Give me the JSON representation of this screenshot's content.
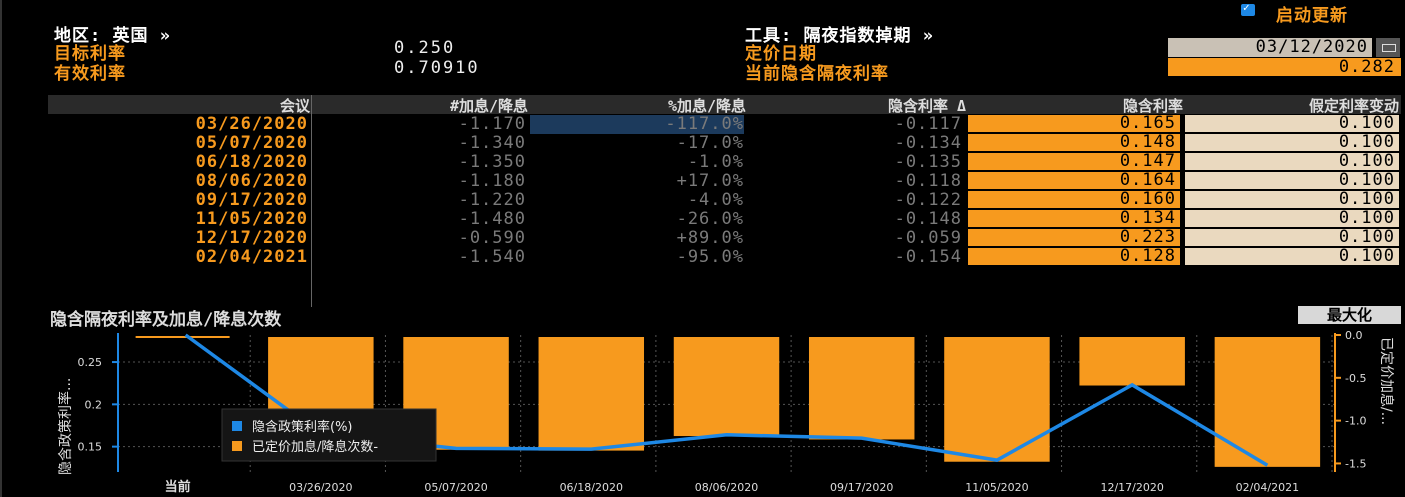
{
  "header": {
    "region_label": "地区: 英国 »",
    "target_rate_label": "目标利率",
    "target_rate_value": "0.250",
    "effective_rate_label": "有效利率",
    "effective_rate_value": "0.70910",
    "instrument_label": "工具: 隔夜指数掉期 »",
    "pricing_date_label": "定价日期",
    "pricing_date_value": "03/12/2020",
    "implied_overnight_label": "当前隐含隔夜利率",
    "implied_overnight_value": "0.282",
    "auto_update_label": "启动更新",
    "auto_update_checked": true
  },
  "table": {
    "columns": [
      "会议",
      "#加息/降息",
      "%加息/降息",
      "隐含利率 Δ",
      "隐含利率",
      "假定利率变动"
    ],
    "rows": [
      {
        "meeting": "03/26/2020",
        "hikes": "-1.170",
        "pct": "-117.0%",
        "delta": "-0.117",
        "implied": "0.165",
        "assumed": "0.100"
      },
      {
        "meeting": "05/07/2020",
        "hikes": "-1.340",
        "pct": "-17.0%",
        "delta": "-0.134",
        "implied": "0.148",
        "assumed": "0.100"
      },
      {
        "meeting": "06/18/2020",
        "hikes": "-1.350",
        "pct": "-1.0%",
        "delta": "-0.135",
        "implied": "0.147",
        "assumed": "0.100"
      },
      {
        "meeting": "08/06/2020",
        "hikes": "-1.180",
        "pct": "+17.0%",
        "delta": "-0.118",
        "implied": "0.164",
        "assumed": "0.100"
      },
      {
        "meeting": "09/17/2020",
        "hikes": "-1.220",
        "pct": "-4.0%",
        "delta": "-0.122",
        "implied": "0.160",
        "assumed": "0.100"
      },
      {
        "meeting": "11/05/2020",
        "hikes": "-1.480",
        "pct": "-26.0%",
        "delta": "-0.148",
        "implied": "0.134",
        "assumed": "0.100"
      },
      {
        "meeting": "12/17/2020",
        "hikes": "-0.590",
        "pct": "+89.0%",
        "delta": "-0.059",
        "implied": "0.223",
        "assumed": "0.100"
      },
      {
        "meeting": "02/04/2021",
        "hikes": "-1.540",
        "pct": "-95.0%",
        "delta": "-0.154",
        "implied": "0.128",
        "assumed": "0.100"
      }
    ]
  },
  "chart_title": "隐含隔夜利率及加息/降息次数",
  "maximize_label": "最大化",
  "colors": {
    "line": "#1e88e5",
    "bar": "#f79a1e",
    "accent": "#f79a1e"
  },
  "chart_data": {
    "type": "bar",
    "categories": [
      "当前",
      "03/26/2020",
      "05/07/2020",
      "06/18/2020",
      "08/06/2020",
      "09/17/2020",
      "11/05/2020",
      "12/17/2020",
      "02/04/2021"
    ],
    "series": [
      {
        "name": "隐含政策利率(%)",
        "type": "line",
        "axis": "left",
        "values": [
          0.282,
          0.165,
          0.148,
          0.147,
          0.164,
          0.16,
          0.134,
          0.223,
          0.128
        ]
      },
      {
        "name": "已定价加息/降息次数-",
        "type": "bar",
        "axis": "right",
        "values": [
          null,
          -1.17,
          -1.34,
          -1.35,
          -1.18,
          -1.22,
          -1.48,
          -0.59,
          -1.54
        ]
      }
    ],
    "ylabel_left": "隐含政策利率...",
    "ylabel_right": "已定价加息/...",
    "yticks_left": [
      "0.25",
      "0.2",
      "0.15"
    ],
    "yticks_right": [
      "0.0",
      "-0.5",
      "-1.0",
      "-1.5"
    ],
    "ylim_left": [
      0.12,
      0.282
    ],
    "ylim_right": [
      -1.6,
      0.0
    ],
    "grid": true,
    "legend": "bottom-left"
  }
}
